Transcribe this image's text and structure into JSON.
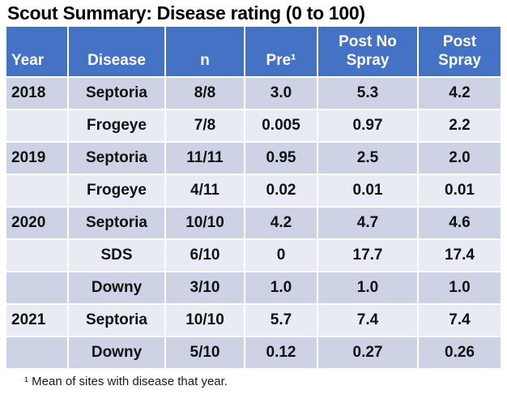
{
  "title": "Scout Summary: Disease rating (0 to 100)",
  "table": {
    "headers": [
      "Year",
      "Disease",
      "n",
      "Pre¹",
      "Post No\nSpray",
      "Post\nSpray"
    ],
    "rows": [
      [
        "2018",
        "Septoria",
        "8/8",
        "3.0",
        "5.3",
        "4.2"
      ],
      [
        "",
        "Frogeye",
        "7/8",
        "0.005",
        "0.97",
        "2.2"
      ],
      [
        "2019",
        "Septoria",
        "11/11",
        "0.95",
        "2.5",
        "2.0"
      ],
      [
        "",
        "Frogeye",
        "4/11",
        "0.02",
        "0.01",
        "0.01"
      ],
      [
        "2020",
        "Septoria",
        "10/10",
        "4.2",
        "4.7",
        "4.6"
      ],
      [
        "",
        "SDS",
        "6/10",
        "0",
        "17.7",
        "17.4"
      ],
      [
        "",
        "Downy",
        "3/10",
        "1.0",
        "1.0",
        "1.0"
      ],
      [
        "2021",
        "Septoria",
        "10/10",
        "5.7",
        "7.4",
        "7.4"
      ],
      [
        "",
        "Downy",
        "5/10",
        "0.12",
        "0.27",
        "0.26"
      ]
    ]
  },
  "footnote": "¹ Mean of sites with disease that year.",
  "colors": {
    "header_bg": "#4472C4",
    "header_text": "#FFFFFF",
    "band_dark": "#CDD2E4",
    "band_light": "#E9EBF4",
    "text": "#111111",
    "gridline": "#FFFFFF"
  }
}
